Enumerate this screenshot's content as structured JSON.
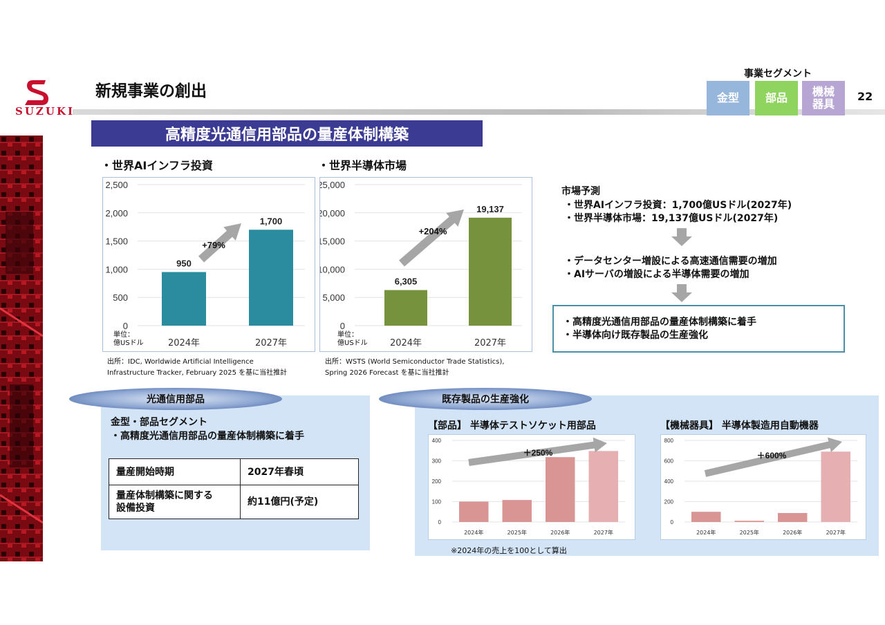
{
  "header": {
    "logo_text": "SUZUKI",
    "page_title": "新規事業の創出",
    "segment_label": "事業セグメント",
    "segments": [
      "金型",
      "部品",
      "機械器具"
    ],
    "segment_colors": [
      "#97b6dc",
      "#8fd45f",
      "#b7a5d4"
    ],
    "page_number": "22"
  },
  "banner": {
    "title": "高精度光通信用部品の量産体制構築"
  },
  "charts": {
    "ai": {
      "heading": "・世界AIインフラ投資",
      "unit": [
        "単位：",
        "億USドル"
      ],
      "growth_label": "+79%",
      "source": [
        "出所：IDC, Worldwide Artificial Intelligence",
        "Infrastructure Tracker, February 2025 を基に当社推計"
      ]
    },
    "semi": {
      "heading": "・世界半導体市場",
      "unit": [
        "単位：",
        "億USドル"
      ],
      "growth_label": "+204%",
      "source": [
        "出所：WSTS (World Semiconductor Trade Statistics),",
        "Spring 2026 Forecast を基に当社推計"
      ]
    },
    "socket": {
      "heading": "【部品】 半導体テストソケット用部品",
      "growth_label": "＋250%"
    },
    "machine": {
      "heading": "【機械器具】 半導体製造用自動機器",
      "growth_label": "＋600%"
    }
  },
  "chart_data": [
    {
      "type": "bar",
      "title": "・世界AIインフラ投資",
      "categories": [
        "2024年",
        "2027年"
      ],
      "values": [
        950,
        1700
      ],
      "data_labels": [
        "950",
        "1,700"
      ],
      "ylim": [
        0,
        2500
      ],
      "yticks": [
        "0",
        "500",
        "1,000",
        "1,500",
        "2,000",
        "2,500"
      ],
      "color": "#2b8c9f"
    },
    {
      "type": "bar",
      "title": "・世界半導体市場",
      "categories": [
        "2024年",
        "2027年"
      ],
      "values": [
        6305,
        19137
      ],
      "data_labels": [
        "6,305",
        "19,137"
      ],
      "ylim": [
        0,
        25000
      ],
      "yticks": [
        "0",
        "5,000",
        "10,000",
        "15,000",
        "20,000",
        "25,000"
      ],
      "color": "#76923c"
    },
    {
      "type": "bar",
      "title": "【部品】 半導体テストソケット用部品",
      "categories": [
        "2024年",
        "2025年",
        "2026年",
        "2027年"
      ],
      "values": [
        100,
        108,
        318,
        348
      ],
      "ylim": [
        0,
        400
      ],
      "yticks": [
        "0",
        "100",
        "200",
        "300",
        "400"
      ],
      "colors": [
        "#d99594",
        "#d99594",
        "#d99594",
        "#e6b0b2"
      ]
    },
    {
      "type": "bar",
      "title": "【機械器具】 半導体製造用自動機器",
      "categories": [
        "2024年",
        "2025年",
        "2026年",
        "2027年"
      ],
      "values": [
        100,
        12,
        88,
        690
      ],
      "ylim": [
        0,
        800
      ],
      "yticks": [
        "0",
        "200",
        "400",
        "600",
        "800"
      ],
      "colors": [
        "#d99594",
        "#d99594",
        "#d99594",
        "#e6b0b2"
      ]
    }
  ],
  "market": {
    "title": "市場予測",
    "lines1": [
      "・世界AIインフラ投資：1,700億USドル(2027年)",
      "・世界半導体市場：19,137億USドル(2027年)"
    ],
    "lines2": [
      "・データセンター増設による高速通信需要の増加",
      "・AIサーバの増設による半導体需要の増加"
    ],
    "lines3": [
      "・高精度光通信用部品の量産体制構築に着手",
      "・半導体向け既存製品の生産強化"
    ]
  },
  "panel_left": {
    "pill": "光通信用部品",
    "seg_line": "金型・部品セグメント",
    "sub_line": "・高精度光通信用部品の量産体制構築に着手",
    "rows": [
      {
        "k": "量産開始時期",
        "v": "2027年春頃"
      },
      {
        "k1": "量産体制構築に関する",
        "k2": "設備投資",
        "v": "約11億円(予定)"
      }
    ]
  },
  "panel_right": {
    "pill": "既存製品の生産強化",
    "note": "※2024年の売上を100として算出"
  }
}
